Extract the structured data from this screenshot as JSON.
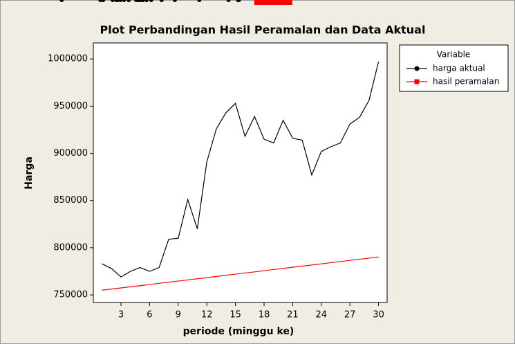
{
  "chart_data": {
    "type": "line",
    "title": "Plot Perbandingan Hasil Peramalan dan Data Aktual",
    "xlabel": "periode (minggu ke)",
    "ylabel": "Harga",
    "legend_title": "Variable",
    "legend": "outside-right",
    "x": [
      1,
      2,
      3,
      4,
      5,
      6,
      7,
      8,
      9,
      10,
      11,
      12,
      13,
      14,
      15,
      16,
      17,
      18,
      19,
      20,
      21,
      22,
      23,
      24,
      25,
      26,
      27,
      28,
      29,
      30
    ],
    "series": [
      {
        "name": "harga aktual",
        "color": "#000000",
        "marker": "circle",
        "values": [
          783000,
          778000,
          769000,
          775000,
          779000,
          775000,
          779000,
          809000,
          810000,
          851000,
          820000,
          891000,
          926000,
          943000,
          953000,
          918000,
          939000,
          915000,
          911000,
          935000,
          916000,
          914000,
          877000,
          902000,
          907000,
          911000,
          931000,
          938000,
          956000,
          997000
        ]
      },
      {
        "name": "hasil peramalan",
        "color": "#ff0000",
        "marker": "square",
        "values": [
          755000,
          756200,
          757400,
          758600,
          759800,
          761000,
          762300,
          763500,
          764700,
          765900,
          767100,
          768300,
          769600,
          770800,
          772000,
          773200,
          774400,
          775600,
          776900,
          778100,
          779300,
          780500,
          781700,
          782900,
          784200,
          785400,
          786600,
          787800,
          789000,
          790200
        ]
      }
    ],
    "xlim": [
      0.1,
      30.9
    ],
    "xticks": [
      3,
      6,
      9,
      12,
      15,
      18,
      21,
      24,
      27,
      30
    ],
    "ylim": [
      742000,
      1017000
    ],
    "yticks": [
      750000,
      800000,
      850000,
      900000,
      950000,
      1000000
    ]
  }
}
